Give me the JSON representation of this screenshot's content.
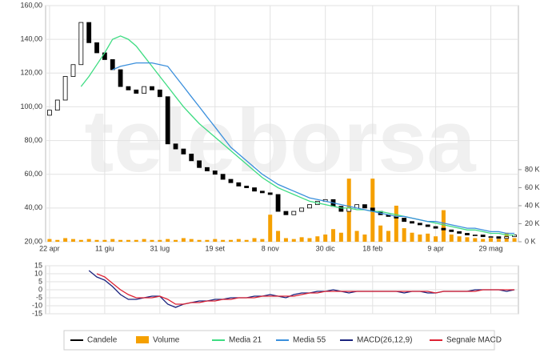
{
  "watermark": "teleborsa",
  "chart_data": [
    {
      "type": "candlestick",
      "categories": [
        "22 apr",
        null,
        null,
        null,
        null,
        null,
        null,
        "11 giu",
        null,
        null,
        null,
        null,
        null,
        null,
        "31 lug",
        null,
        null,
        null,
        null,
        null,
        null,
        "19 set",
        null,
        null,
        null,
        null,
        null,
        null,
        "8 nov",
        null,
        null,
        null,
        null,
        null,
        null,
        "30 dic",
        null,
        null,
        null,
        null,
        null,
        "18 feb",
        null,
        null,
        null,
        null,
        null,
        null,
        null,
        "9 apr",
        null,
        null,
        null,
        null,
        null,
        null,
        "29 mag",
        null,
        null,
        null
      ],
      "ylim": [
        20,
        160
      ],
      "yticks": [
        {
          "value": 20,
          "label": "20,00"
        },
        {
          "value": 40,
          "label": "40,00"
        },
        {
          "value": 60,
          "label": "60,00"
        },
        {
          "value": 80,
          "label": "80,00"
        },
        {
          "value": 100,
          "label": "100,00"
        },
        {
          "value": 120,
          "label": "120,00"
        },
        {
          "value": 140,
          "label": "140,00"
        },
        {
          "value": 160,
          "label": "160,00"
        }
      ],
      "y2lim": [
        0,
        262000
      ],
      "y2ticks": [
        {
          "value": 0,
          "label": "0 K"
        },
        {
          "value": 20000,
          "label": "20 K"
        },
        {
          "value": 40000,
          "label": "40 K"
        },
        {
          "value": 60000,
          "label": "60 K"
        },
        {
          "value": 80000,
          "label": "80 K"
        }
      ],
      "grid": true,
      "series": [
        {
          "name": "Candele",
          "type": "candlestick",
          "color": "#000000",
          "open": [
            95,
            98,
            104,
            118,
            125,
            150,
            138,
            132,
            128,
            122,
            112,
            110,
            108,
            112,
            110,
            106,
            78,
            75,
            72,
            68,
            64,
            62,
            60,
            57,
            55,
            53,
            52,
            50,
            49,
            48,
            38,
            36,
            38,
            40,
            42,
            44,
            45,
            41,
            38,
            40,
            42,
            40,
            38,
            36,
            35,
            34,
            32,
            31,
            30,
            29,
            28,
            27,
            26,
            25,
            24,
            24,
            23,
            23,
            22,
            23
          ],
          "close": [
            98,
            104,
            118,
            125,
            150,
            138,
            132,
            128,
            122,
            112,
            110,
            108,
            112,
            110,
            106,
            78,
            75,
            72,
            68,
            64,
            62,
            60,
            57,
            55,
            53,
            52,
            50,
            49,
            48,
            38,
            36,
            38,
            40,
            42,
            44,
            45,
            41,
            38,
            40,
            42,
            40,
            38,
            36,
            35,
            34,
            32,
            31,
            30,
            29,
            28,
            27,
            26,
            25,
            24,
            24,
            23,
            23,
            22,
            23,
            24
          ]
        },
        {
          "name": "Volume",
          "type": "bar",
          "axis": "y2",
          "color": "#f5a000",
          "values": [
            3000,
            2000,
            4000,
            3000,
            2000,
            3000,
            2000,
            2000,
            3000,
            2000,
            2000,
            2000,
            3000,
            2000,
            2000,
            3000,
            2000,
            4000,
            3000,
            2000,
            2000,
            3000,
            2000,
            2000,
            3000,
            2000,
            4000,
            3000,
            30000,
            12000,
            4000,
            3000,
            5000,
            4000,
            6000,
            8000,
            14000,
            10000,
            70000,
            12000,
            8000,
            70000,
            18000,
            12000,
            40000,
            15000,
            10000,
            8000,
            9000,
            6000,
            35000,
            8000,
            6000,
            5000,
            4000,
            3000,
            4000,
            3000,
            10000,
            4000
          ]
        },
        {
          "name": "Media 21",
          "type": "line",
          "color": "#3edc82",
          "values": [
            null,
            null,
            null,
            null,
            112,
            118,
            125,
            132,
            140,
            142,
            140,
            136,
            130,
            124,
            118,
            112,
            106,
            100,
            95,
            90,
            86,
            82,
            78,
            74,
            70,
            66,
            62,
            58,
            55,
            52,
            50,
            48,
            46,
            44,
            43,
            42,
            41,
            40,
            40,
            39,
            39,
            38,
            38,
            37,
            36,
            35,
            34,
            33,
            32,
            31,
            30,
            29,
            28,
            27,
            27,
            26,
            25,
            25,
            24,
            24
          ]
        },
        {
          "name": "Media 55",
          "type": "line",
          "color": "#3a8fdc",
          "values": [
            null,
            null,
            null,
            null,
            null,
            null,
            null,
            null,
            122,
            124,
            125,
            126,
            126,
            126,
            125,
            124,
            118,
            112,
            106,
            100,
            94,
            88,
            82,
            76,
            72,
            68,
            64,
            60,
            57,
            54,
            52,
            50,
            48,
            46,
            45,
            44,
            43,
            42,
            41,
            40,
            39,
            38,
            37,
            36,
            35,
            35,
            34,
            33,
            32,
            32,
            31,
            30,
            29,
            28,
            28,
            27,
            26,
            26,
            25,
            25
          ]
        }
      ]
    },
    {
      "type": "line",
      "ylim": [
        -15,
        15
      ],
      "yticks": [
        15,
        10,
        5,
        0,
        -5,
        -10,
        -15
      ],
      "grid": true,
      "series": [
        {
          "name": "MACD(26,12,9)",
          "type": "line",
          "color": "#1a237e",
          "values": [
            null,
            null,
            null,
            null,
            null,
            12,
            8,
            6,
            2,
            -3,
            -6,
            -6,
            -5,
            -4,
            -4,
            -9,
            -11,
            -9,
            -8,
            -7,
            -7,
            -6,
            -6,
            -5,
            -5,
            -5,
            -4,
            -4,
            -3,
            -4,
            -5,
            -3,
            -2,
            -2,
            -1,
            -1,
            0,
            -1,
            -2,
            -1,
            -1,
            -1,
            -1,
            -1,
            -1,
            -2,
            -1,
            -1,
            -2,
            -2,
            -1,
            -1,
            -1,
            -1,
            0,
            0,
            0,
            0,
            -1,
            0
          ]
        },
        {
          "name": "Segnale MACD",
          "type": "line",
          "color": "#dd2233",
          "values": [
            null,
            null,
            null,
            null,
            null,
            null,
            10,
            8,
            4,
            0,
            -3,
            -5,
            -5,
            -5,
            -4,
            -6,
            -9,
            -9,
            -8,
            -8,
            -7,
            -7,
            -6,
            -6,
            -5,
            -5,
            -5,
            -4,
            -4,
            -4,
            -4,
            -4,
            -3,
            -2,
            -2,
            -1,
            -1,
            -1,
            -1,
            -1,
            -1,
            -1,
            -1,
            -1,
            -1,
            -1,
            -1,
            -1,
            -1,
            -2,
            -1,
            -1,
            -1,
            -1,
            -1,
            0,
            0,
            0,
            0,
            0
          ]
        }
      ]
    }
  ]
}
